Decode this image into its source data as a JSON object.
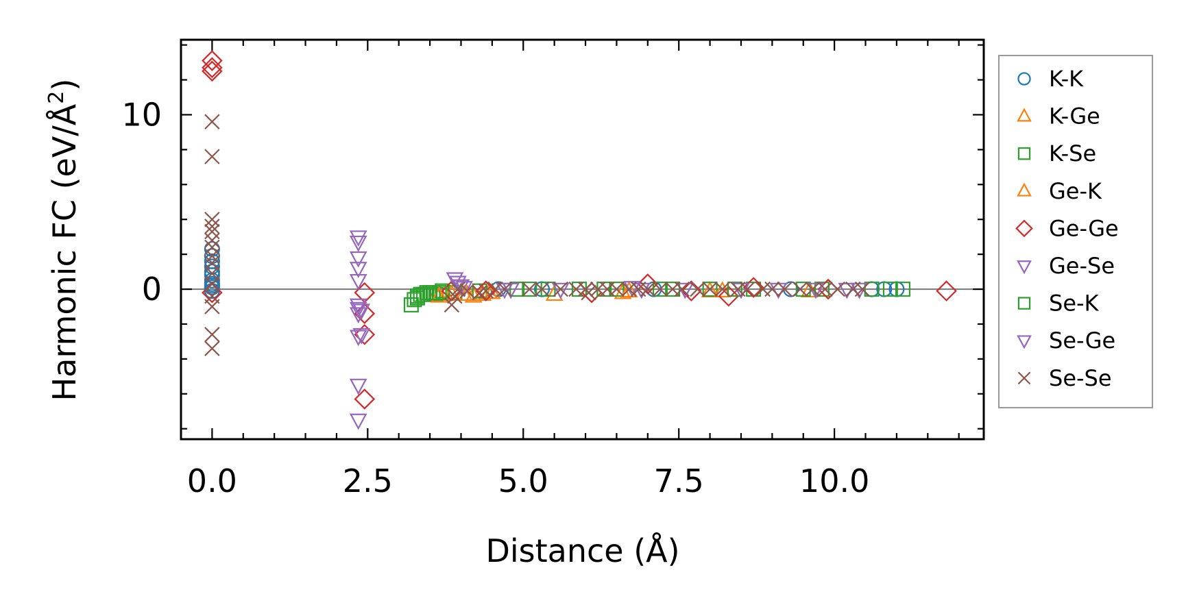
{
  "chart_data": {
    "type": "scatter",
    "xlabel": "Distance (Å)",
    "ylabel_main": "Harmonic FC (eV/Å",
    "ylabel_sup": "2",
    "ylabel_close": ")",
    "xlim": [
      -0.5,
      12.4
    ],
    "ylim": [
      -8.6,
      14.3
    ],
    "x_ticks": [
      {
        "value": 0.0,
        "label": "0.0"
      },
      {
        "value": 2.5,
        "label": "2.5"
      },
      {
        "value": 5.0,
        "label": "5.0"
      },
      {
        "value": 7.5,
        "label": "7.5"
      },
      {
        "value": 10.0,
        "label": "10.0"
      }
    ],
    "y_ticks": [
      {
        "value": 0,
        "label": "0"
      },
      {
        "value": 10,
        "label": "10"
      }
    ],
    "x_minor_step": 0.5,
    "y_minor_step": 2,
    "zero_line": 0,
    "legend_position": "right",
    "series": [
      {
        "name": "K-K",
        "marker": "circle",
        "color": "#1f77b4",
        "points": [
          [
            0,
            2.3
          ],
          [
            0,
            1.9
          ],
          [
            0,
            1.6
          ],
          [
            0,
            1.3
          ],
          [
            0,
            1.0
          ],
          [
            0,
            0.8
          ],
          [
            0,
            0.5
          ],
          [
            0,
            0.3
          ],
          [
            0,
            0.1
          ],
          [
            0,
            -0.1
          ],
          [
            0,
            0.2
          ],
          [
            4.6,
            0.0
          ],
          [
            5.3,
            0.0
          ],
          [
            7.1,
            0.0
          ],
          [
            9.3,
            0.0
          ],
          [
            10.6,
            0.0
          ],
          [
            10.8,
            0.0
          ],
          [
            11.0,
            0.0
          ]
        ]
      },
      {
        "name": "K-Ge",
        "marker": "triangle-up",
        "color": "#ff7f0e",
        "points": [
          [
            3.6,
            -0.3
          ],
          [
            3.75,
            -0.3
          ],
          [
            4.05,
            -0.3
          ],
          [
            4.2,
            -0.4
          ],
          [
            4.35,
            -0.3
          ],
          [
            4.45,
            -0.2
          ],
          [
            5.5,
            -0.3
          ],
          [
            6.6,
            -0.2
          ],
          [
            8.0,
            -0.1
          ],
          [
            9.6,
            -0.1
          ]
        ]
      },
      {
        "name": "K-Se",
        "marker": "square",
        "color": "#2ca02c",
        "points": [
          [
            3.2,
            -0.9
          ],
          [
            3.25,
            -0.6
          ],
          [
            3.3,
            -0.4
          ],
          [
            3.35,
            -0.3
          ],
          [
            3.45,
            -0.2
          ],
          [
            3.55,
            -0.2
          ],
          [
            3.6,
            -0.3
          ],
          [
            3.7,
            -0.1
          ],
          [
            3.9,
            -0.2
          ],
          [
            4.3,
            -0.1
          ],
          [
            4.9,
            0.0
          ],
          [
            5.4,
            0.0
          ],
          [
            5.9,
            0.0
          ],
          [
            6.5,
            0.0
          ],
          [
            7.4,
            0.0
          ],
          [
            8.0,
            0.0
          ],
          [
            8.7,
            0.0
          ],
          [
            9.8,
            0.0
          ],
          [
            10.6,
            0.0
          ],
          [
            11.1,
            0.0
          ]
        ]
      },
      {
        "name": "Ge-K",
        "marker": "triangle-up",
        "color": "#ff7f0e",
        "points": [
          [
            3.65,
            -0.4
          ],
          [
            3.85,
            -0.3
          ],
          [
            4.1,
            -0.3
          ],
          [
            4.5,
            -0.2
          ],
          [
            6.7,
            -0.1
          ],
          [
            8.2,
            -0.1
          ]
        ]
      },
      {
        "name": "Ge-Ge",
        "marker": "diamond",
        "color": "#d62728",
        "points": [
          [
            0,
            13.1
          ],
          [
            0,
            12.7
          ],
          [
            0,
            12.5
          ],
          [
            0,
            -0.2
          ],
          [
            2.45,
            -0.2
          ],
          [
            2.45,
            -1.4
          ],
          [
            2.45,
            -2.6
          ],
          [
            2.45,
            -6.3
          ],
          [
            3.85,
            -0.1
          ],
          [
            4.4,
            -0.1
          ],
          [
            6.1,
            -0.2
          ],
          [
            7.0,
            0.3
          ],
          [
            7.7,
            -0.1
          ],
          [
            8.3,
            -0.4
          ],
          [
            8.7,
            0.1
          ],
          [
            9.9,
            0.0
          ],
          [
            11.8,
            -0.1
          ]
        ]
      },
      {
        "name": "Ge-Se",
        "marker": "triangle-down",
        "color": "#9467bd",
        "points": [
          [
            2.35,
            3.0
          ],
          [
            2.35,
            2.7
          ],
          [
            2.35,
            1.8
          ],
          [
            2.35,
            1.2
          ],
          [
            2.35,
            0.5
          ],
          [
            2.35,
            -0.9
          ],
          [
            2.35,
            -1.1
          ],
          [
            2.35,
            -1.4
          ],
          [
            2.35,
            -2.7
          ],
          [
            2.35,
            -5.5
          ],
          [
            2.35,
            -7.5
          ],
          [
            3.9,
            0.6
          ],
          [
            4.0,
            0.2
          ],
          [
            4.7,
            0.0
          ],
          [
            5.6,
            0.0
          ],
          [
            6.9,
            0.0
          ],
          [
            7.6,
            0.0
          ],
          [
            9.1,
            0.0
          ],
          [
            10.4,
            0.0
          ]
        ]
      },
      {
        "name": "Se-K",
        "marker": "square",
        "color": "#2ca02c",
        "points": [
          [
            3.3,
            -0.5
          ],
          [
            3.4,
            -0.3
          ],
          [
            3.5,
            -0.2
          ],
          [
            3.65,
            -0.2
          ],
          [
            5.1,
            0.0
          ],
          [
            6.3,
            0.0
          ],
          [
            7.2,
            0.0
          ],
          [
            8.4,
            0.0
          ],
          [
            9.5,
            0.0
          ],
          [
            10.9,
            0.0
          ]
        ]
      },
      {
        "name": "Se-Ge",
        "marker": "triangle-down",
        "color": "#9467bd",
        "points": [
          [
            2.4,
            -1.2
          ],
          [
            2.4,
            -2.6
          ],
          [
            3.95,
            0.4
          ],
          [
            4.05,
            0.1
          ],
          [
            4.8,
            0.0
          ],
          [
            6.75,
            0.1
          ],
          [
            8.5,
            0.0
          ],
          [
            9.7,
            0.0
          ],
          [
            10.2,
            0.0
          ]
        ]
      },
      {
        "name": "Se-Se",
        "marker": "x",
        "color": "#8c564b",
        "points": [
          [
            0,
            9.6
          ],
          [
            0,
            7.6
          ],
          [
            0,
            4.0
          ],
          [
            0,
            3.6
          ],
          [
            0,
            3.3
          ],
          [
            0,
            2.8
          ],
          [
            0,
            2.4
          ],
          [
            0,
            1.9
          ],
          [
            0,
            1.5
          ],
          [
            0,
            0.9
          ],
          [
            0,
            0.3
          ],
          [
            0,
            -0.4
          ],
          [
            0,
            -1.0
          ],
          [
            0,
            -2.6
          ],
          [
            0,
            -3.4
          ],
          [
            3.85,
            -0.9
          ],
          [
            3.9,
            -0.4
          ],
          [
            3.95,
            0.0
          ],
          [
            4.1,
            -0.1
          ],
          [
            4.3,
            -0.2
          ],
          [
            4.4,
            -0.1
          ],
          [
            4.55,
            0.0
          ],
          [
            4.7,
            0.0
          ],
          [
            5.1,
            0.0
          ],
          [
            5.3,
            0.0
          ],
          [
            5.6,
            0.0
          ],
          [
            5.85,
            0.0
          ],
          [
            6.0,
            0.0
          ],
          [
            6.05,
            -0.2
          ],
          [
            6.2,
            0.0
          ],
          [
            6.35,
            0.0
          ],
          [
            6.5,
            0.0
          ],
          [
            6.7,
            0.0
          ],
          [
            6.85,
            0.0
          ],
          [
            7.0,
            0.0
          ],
          [
            7.2,
            0.0
          ],
          [
            7.4,
            0.0
          ],
          [
            7.55,
            0.0
          ],
          [
            7.8,
            0.0
          ],
          [
            8.0,
            0.0
          ],
          [
            8.2,
            0.0
          ],
          [
            8.45,
            0.0
          ],
          [
            8.6,
            0.0
          ],
          [
            8.85,
            0.0
          ],
          [
            9.0,
            0.0
          ],
          [
            9.2,
            0.0
          ],
          [
            9.45,
            0.0
          ],
          [
            9.65,
            0.0
          ],
          [
            9.85,
            0.0
          ],
          [
            10.05,
            0.0
          ],
          [
            10.3,
            0.0
          ],
          [
            10.45,
            0.0
          ]
        ]
      }
    ]
  }
}
